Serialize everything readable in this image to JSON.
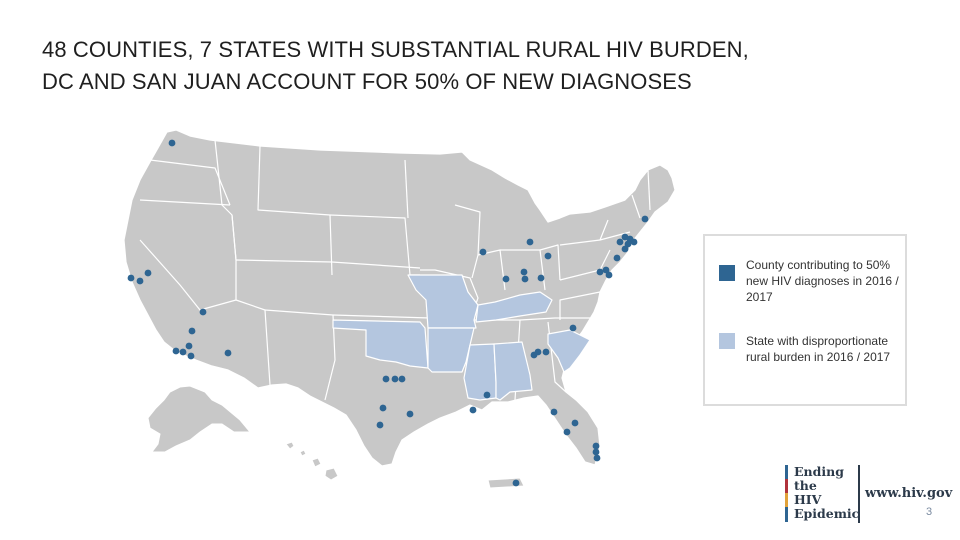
{
  "title": {
    "line1": "48 COUNTIES, 7 STATES WITH SUBSTANTIAL RURAL HIV BURDEN,",
    "line2": "DC AND SAN JUAN ACCOUNT FOR 50% OF NEW DIAGNOSES"
  },
  "colors": {
    "land": "#c8c8c8",
    "border": "#ffffff",
    "rural_state": "#b4c6df",
    "county_dot": "#2e6592",
    "legend_dot": "#2e6592",
    "logo_bars": [
      "#2e6592",
      "#b0323c",
      "#e1a23a",
      "#2e6592"
    ]
  },
  "legend": {
    "county_label": "County contributing to 50% new HIV diagnoses in 2016 / 2017",
    "state_label": "State with disproportionate rural burden in 2016 / 2017"
  },
  "rural_states": [
    "Oklahoma",
    "Missouri",
    "Arkansas",
    "Kentucky",
    "Mississippi",
    "Alabama",
    "South Carolina"
  ],
  "logo": {
    "words": [
      "Ending",
      "the",
      "HIV",
      "Epidemic"
    ],
    "url": "www.hiv.gov"
  },
  "page_number": "3"
}
